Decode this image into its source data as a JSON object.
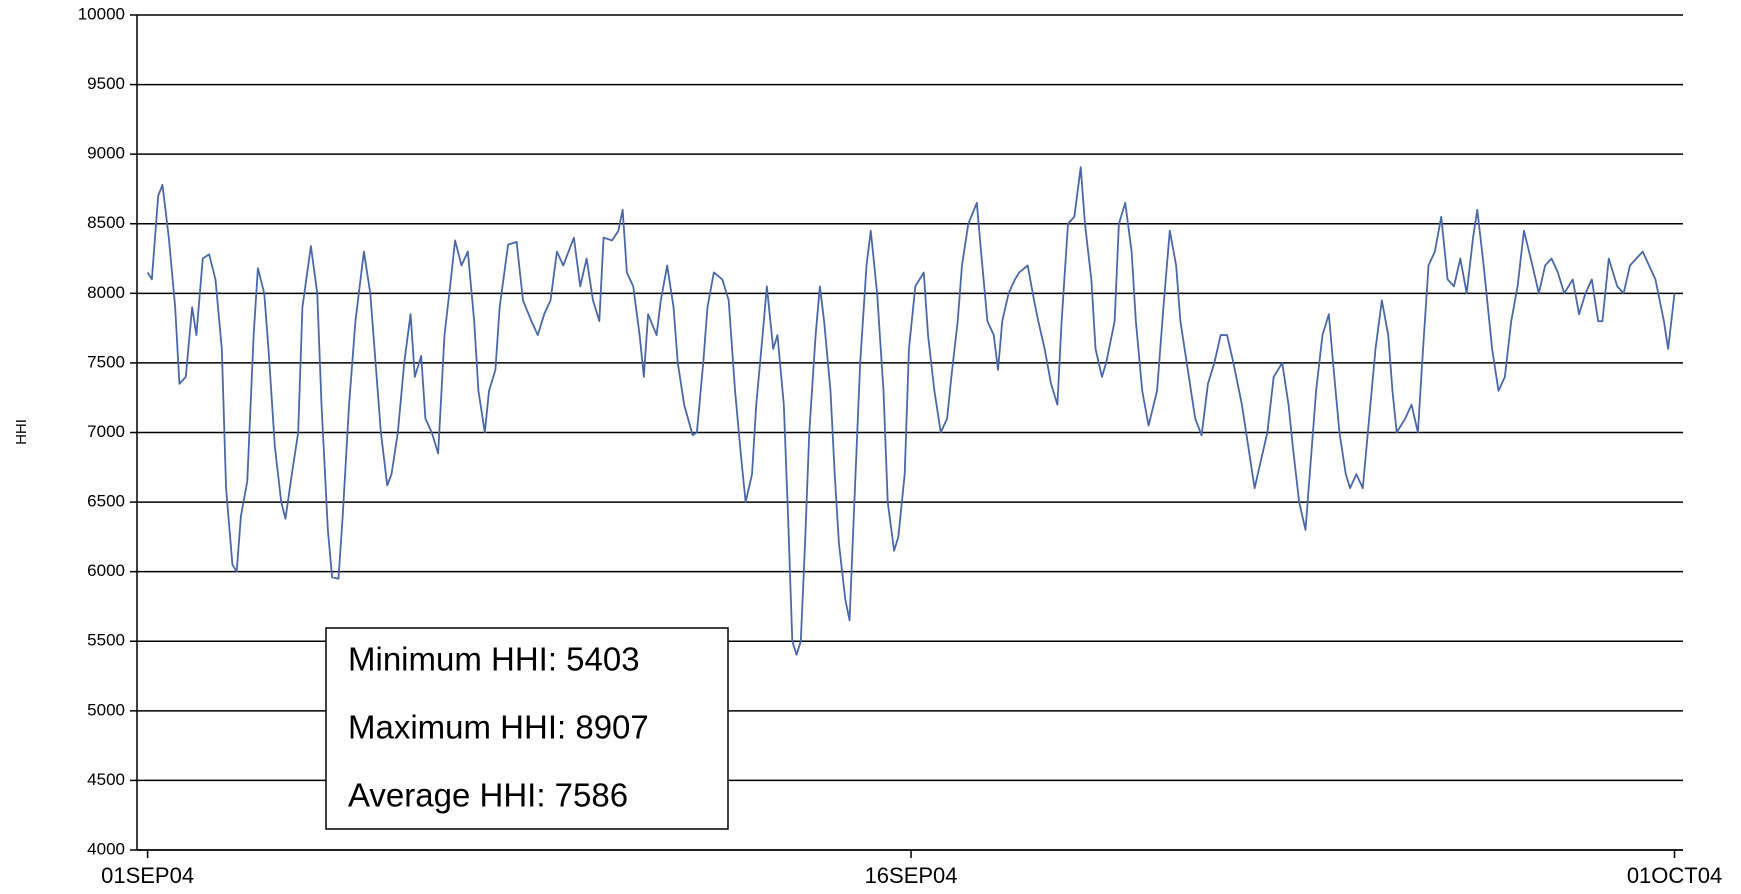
{
  "chart_data": {
    "type": "line",
    "y_label": "HHI",
    "annotations": [
      "Minimum HHI: 5403",
      "Maximum HHI: 8907",
      "Average HHI: 7586"
    ],
    "x": [
      0,
      2,
      5,
      7,
      10,
      13,
      15,
      18,
      21,
      23,
      26,
      29,
      32,
      35,
      37,
      40,
      42,
      44,
      47,
      50,
      52,
      55,
      57,
      60,
      63,
      65,
      68,
      71,
      73,
      77,
      80,
      82,
      85,
      87,
      90,
      92,
      95,
      98,
      102,
      105,
      107,
      110,
      113,
      115,
      118,
      121,
      124,
      126,
      129,
      131,
      134,
      137,
      140,
      143,
      145,
      148,
      151,
      154,
      156,
      159,
      161,
      164,
      166,
      170,
      174,
      177,
      181,
      184,
      187,
      190,
      193,
      196,
      201,
      204,
      207,
      210,
      213,
      215,
      219,
      222,
      224,
      226,
      229,
      232,
      234,
      236,
      240,
      242,
      245,
      248,
      250,
      253,
      257,
      259,
      262,
      264,
      267,
      271,
      274,
      277,
      280,
      282,
      285,
      287,
      290,
      292,
      295,
      297,
      300,
      302,
      304,
      306,
      308,
      310,
      312,
      315,
      317,
      319,
      322,
      324,
      326,
      329,
      331,
      333,
      336,
      339,
      341,
      344,
      347,
      349,
      352,
      354,
      357,
      359,
      362,
      366,
      368,
      371,
      374,
      377,
      379,
      382,
      384,
      387,
      391,
      393,
      396,
      399,
      401,
      403,
      406,
      409,
      411,
      415,
      418,
      420,
      423,
      426,
      429,
      431,
      434,
      437,
      440,
      442,
      445,
      447,
      450,
      452,
      456,
      458,
      461,
      464,
      466,
      469,
      472,
      476,
      479,
      482,
      485,
      487,
      490,
      494,
      497,
      500,
      503,
      506,
      509,
      512,
      516,
      519,
      522,
      525,
      528,
      531,
      535,
      538,
      540,
      543,
      546,
      549,
      551,
      554,
      557,
      559,
      562,
      565,
      567,
      570,
      573,
      576,
      579,
      582,
      585,
      587,
      589,
      593,
      596,
      599,
      601,
      604,
      607,
      610,
      613,
      616,
      619,
      622,
      625,
      627,
      630,
      634,
      637,
      640,
      643,
      646,
      649,
      653,
      656,
      659,
      662,
      665,
      668,
      672,
      675,
      678,
      681,
      684,
      686,
      689,
      693,
      696,
      699,
      702,
      705,
      708,
      711,
      715,
      717,
      720
    ],
    "series": [
      {
        "name": "HHI",
        "color": "#4a68a8",
        "values": [
          8150,
          8100,
          8700,
          8780,
          8400,
          7900,
          7350,
          7400,
          7900,
          7700,
          8250,
          8280,
          8100,
          7600,
          6600,
          6050,
          6000,
          6400,
          6650,
          7700,
          8180,
          8000,
          7600,
          6900,
          6500,
          6380,
          6700,
          7000,
          7900,
          8340,
          8000,
          7200,
          6300,
          5960,
          5950,
          6400,
          7200,
          7800,
          8300,
          8000,
          7600,
          7000,
          6620,
          6700,
          7000,
          7500,
          7850,
          7400,
          7550,
          7100,
          7000,
          6850,
          7700,
          8100,
          8380,
          8200,
          8300,
          7800,
          7300,
          7000,
          7300,
          7450,
          7900,
          8350,
          8370,
          7950,
          7800,
          7700,
          7850,
          7950,
          8300,
          8200,
          8400,
          8050,
          8250,
          7950,
          7800,
          8400,
          8380,
          8450,
          8600,
          8150,
          8050,
          7700,
          7400,
          7850,
          7700,
          7950,
          8200,
          7900,
          7500,
          7200,
          6980,
          7000,
          7500,
          7900,
          8150,
          8100,
          7950,
          7300,
          6800,
          6500,
          6700,
          7200,
          7700,
          8050,
          7600,
          7700,
          7200,
          6400,
          5500,
          5403,
          5500,
          6200,
          7000,
          7700,
          8050,
          7800,
          7300,
          6700,
          6200,
          5800,
          5650,
          6400,
          7500,
          8200,
          8450,
          8000,
          7300,
          6500,
          6150,
          6250,
          6700,
          7600,
          8050,
          8150,
          7700,
          7300,
          7000,
          7100,
          7400,
          7800,
          8200,
          8500,
          8650,
          8300,
          7800,
          7700,
          7450,
          7800,
          8000,
          8100,
          8150,
          8200,
          7950,
          7800,
          7600,
          7350,
          7200,
          7800,
          8500,
          8550,
          8907,
          8500,
          8100,
          7600,
          7400,
          7500,
          7800,
          8500,
          8650,
          8300,
          7800,
          7300,
          7050,
          7300,
          7900,
          8450,
          8200,
          7800,
          7500,
          7100,
          6980,
          7350,
          7500,
          7700,
          7700,
          7500,
          7200,
          6900,
          6600,
          6800,
          7000,
          7400,
          7500,
          7200,
          6900,
          6500,
          6300,
          6900,
          7300,
          7700,
          7850,
          7500,
          7000,
          6700,
          6600,
          6700,
          6600,
          7100,
          7600,
          7950,
          7700,
          7300,
          7000,
          7100,
          7200,
          7000,
          7500,
          8200,
          8300,
          8550,
          8100,
          8050,
          8250,
          8000,
          8400,
          8600,
          8200,
          7600,
          7300,
          7400,
          7800,
          8050,
          8450,
          8200,
          8000,
          8200,
          8250,
          8150,
          8000,
          8100,
          7850,
          8000,
          8100,
          7800,
          7800,
          8250,
          8050,
          8000,
          8200,
          8250,
          8300,
          8200,
          8100,
          7800,
          7600,
          8000
        ]
      }
    ],
    "xlim": [
      -5,
      724
    ],
    "xticks": [
      {
        "value": 0,
        "label": "01SEP04"
      },
      {
        "value": 360,
        "label": "16SEP04"
      },
      {
        "value": 720,
        "label": "01OCT04"
      }
    ],
    "ylim": [
      4000,
      10000
    ],
    "yticks": [
      4000,
      4500,
      5000,
      5500,
      6000,
      6500,
      7000,
      7500,
      8000,
      8500,
      9000,
      9500,
      10000
    ],
    "grid": true
  }
}
